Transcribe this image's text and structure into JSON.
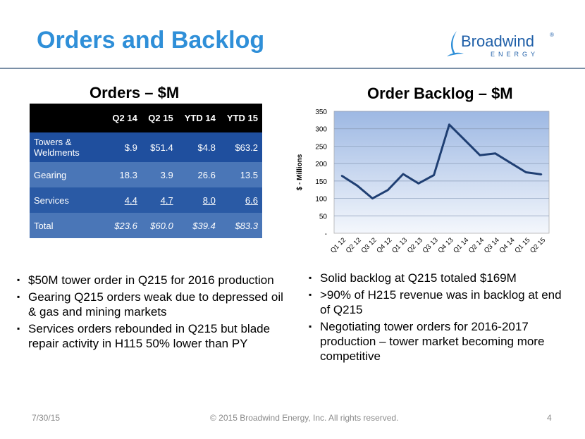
{
  "title": "Orders and Backlog",
  "logo": {
    "name": "Broadwind",
    "tag": "ENERGY",
    "reg": "®"
  },
  "orders": {
    "heading": "Orders – $M",
    "columns": [
      "",
      "Q2 14",
      "Q2 15",
      "YTD 14",
      "YTD 15"
    ],
    "rows": [
      {
        "label": "Towers & Weldments",
        "values": [
          "$.9",
          "$51.4",
          "$4.8",
          "$63.2"
        ]
      },
      {
        "label": "Gearing",
        "values": [
          "18.3",
          "3.9",
          "26.6",
          "13.5"
        ]
      },
      {
        "label": "Services",
        "values": [
          "4.4",
          "4.7",
          "8.0",
          "6.6"
        ]
      },
      {
        "label": "Total",
        "values": [
          "$23.6",
          "$60.0",
          "$39.4",
          "$83.3"
        ]
      }
    ]
  },
  "backlog_heading": "Order Backlog – $M",
  "chart_data": {
    "type": "line",
    "categories": [
      "Q1 12",
      "Q2 12",
      "Q3 12",
      "Q4 12",
      "Q1 13",
      "Q2 13",
      "Q3 13",
      "Q4 13",
      "Q1 14",
      "Q2 14",
      "Q3 14",
      "Q4 14",
      "Q1 15",
      "Q2 15"
    ],
    "values": [
      165,
      137,
      100,
      124,
      170,
      143,
      167,
      312,
      268,
      224,
      229,
      202,
      175,
      169
    ],
    "ylabel": "$ - Millions",
    "ylim": [
      0,
      350
    ],
    "yticks": [
      "-",
      "50",
      "100",
      "150",
      "200",
      "250",
      "300",
      "350"
    ],
    "grid": true,
    "line_color": "#1f3f73"
  },
  "left_bullets": [
    "$50M tower order in Q215 for 2016 production",
    "Gearing Q215 orders weak due to depressed oil & gas and mining markets",
    "Services orders rebounded in Q215 but blade repair activity in H115 50% lower than PY"
  ],
  "right_bullets": [
    "Solid backlog at Q215 totaled $169M",
    ">90% of H215 revenue was in backlog at end of Q215",
    "Negotiating tower orders for 2016-2017 production – tower market becoming more competitive"
  ],
  "footer": {
    "date": "7/30/15",
    "copyright": "© 2015 Broadwind Energy, Inc. All rights reserved.",
    "page": "4"
  }
}
